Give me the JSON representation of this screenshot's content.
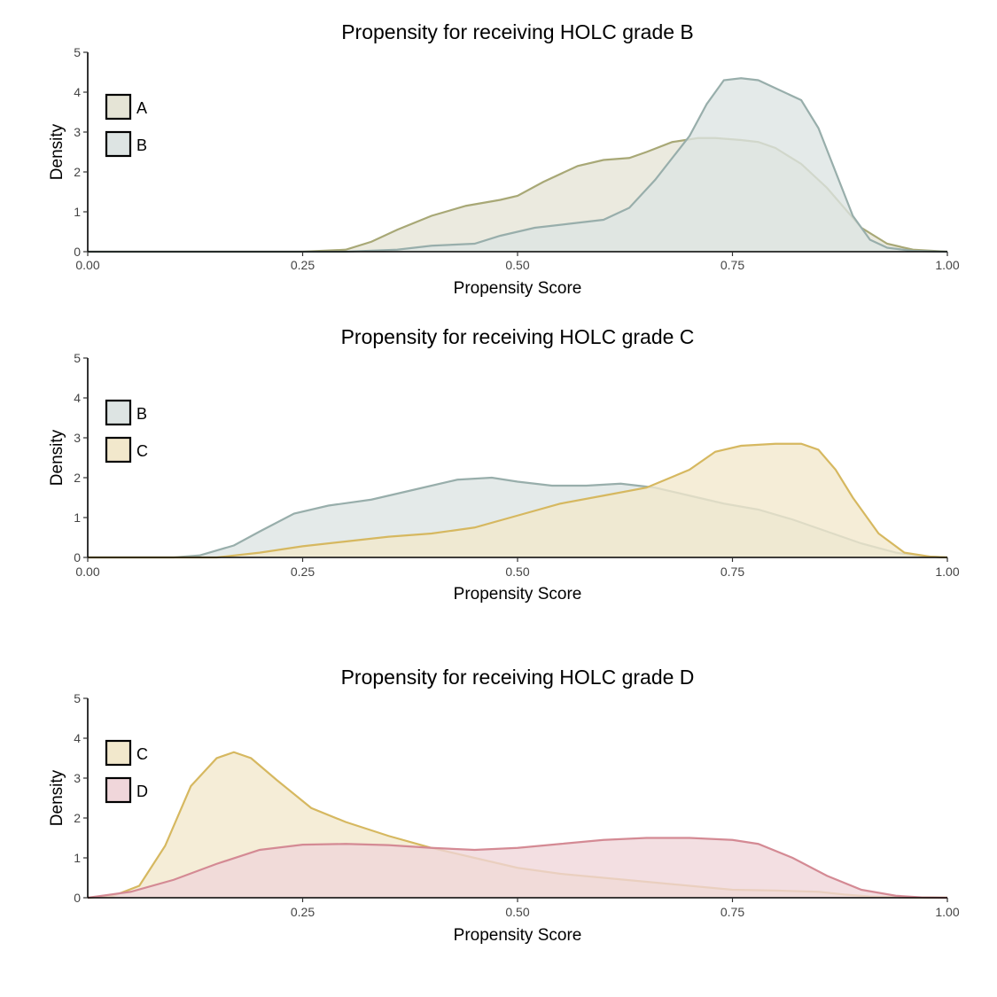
{
  "chart_data": [
    {
      "type": "area",
      "title": "Propensity for receiving HOLC grade B",
      "xlabel": "Propensity Score",
      "ylabel": "Density",
      "xlim": [
        0,
        1
      ],
      "ylim": [
        0,
        5
      ],
      "x_ticks": [
        0,
        0.25,
        0.5,
        0.75,
        1
      ],
      "x_tick_labels": [
        "0.00",
        "0.25",
        "0.50",
        "0.75",
        "1.00"
      ],
      "y_ticks": [
        0,
        1,
        2,
        3,
        4,
        5
      ],
      "y_tick_labels": [
        "0",
        "1",
        "2",
        "3",
        "4",
        "5"
      ],
      "legend_position": "top-left",
      "grid": false,
      "series": [
        {
          "name": "A",
          "fill": "#e5e4d6",
          "line": "#a8a876",
          "x": [
            0,
            0.25,
            0.3,
            0.33,
            0.36,
            0.4,
            0.44,
            0.48,
            0.5,
            0.53,
            0.57,
            0.6,
            0.63,
            0.65,
            0.68,
            0.71,
            0.73,
            0.76,
            0.78,
            0.8,
            0.83,
            0.86,
            0.88,
            0.9,
            0.93,
            0.96,
            1
          ],
          "y": [
            0,
            0,
            0.05,
            0.25,
            0.55,
            0.9,
            1.15,
            1.3,
            1.4,
            1.75,
            2.15,
            2.3,
            2.35,
            2.5,
            2.75,
            2.85,
            2.85,
            2.8,
            2.75,
            2.6,
            2.2,
            1.6,
            1.1,
            0.6,
            0.2,
            0.05,
            0
          ]
        },
        {
          "name": "B",
          "fill": "#dde4e3",
          "line": "#98aeab",
          "x": [
            0,
            0.3,
            0.36,
            0.4,
            0.45,
            0.48,
            0.52,
            0.56,
            0.6,
            0.63,
            0.66,
            0.7,
            0.72,
            0.74,
            0.76,
            0.78,
            0.8,
            0.83,
            0.85,
            0.87,
            0.89,
            0.91,
            0.93,
            0.96,
            1
          ],
          "y": [
            0,
            0,
            0.05,
            0.15,
            0.2,
            0.4,
            0.6,
            0.7,
            0.8,
            1.1,
            1.8,
            2.9,
            3.7,
            4.3,
            4.35,
            4.3,
            4.1,
            3.8,
            3.1,
            2.0,
            0.9,
            0.3,
            0.1,
            0.02,
            0
          ]
        }
      ]
    },
    {
      "type": "area",
      "title": "Propensity for receiving HOLC grade C",
      "xlabel": "Propensity Score",
      "ylabel": "Density",
      "xlim": [
        0,
        1
      ],
      "ylim": [
        0,
        5
      ],
      "x_ticks": [
        0,
        0.25,
        0.5,
        0.75,
        1
      ],
      "x_tick_labels": [
        "0.00",
        "0.25",
        "0.50",
        "0.75",
        "1.00"
      ],
      "y_ticks": [
        0,
        1,
        2,
        3,
        4,
        5
      ],
      "y_tick_labels": [
        "0",
        "1",
        "2",
        "3",
        "4",
        "5"
      ],
      "legend_position": "top-left",
      "grid": false,
      "series": [
        {
          "name": "B",
          "fill": "#dde4e3",
          "line": "#98aeab",
          "x": [
            0,
            0.1,
            0.13,
            0.17,
            0.2,
            0.24,
            0.28,
            0.33,
            0.38,
            0.43,
            0.47,
            0.5,
            0.54,
            0.58,
            0.62,
            0.66,
            0.7,
            0.74,
            0.78,
            0.82,
            0.86,
            0.9,
            0.94,
            0.97,
            1
          ],
          "y": [
            0,
            0,
            0.05,
            0.3,
            0.65,
            1.1,
            1.3,
            1.45,
            1.7,
            1.95,
            2.0,
            1.9,
            1.8,
            1.8,
            1.85,
            1.75,
            1.55,
            1.35,
            1.2,
            0.95,
            0.65,
            0.35,
            0.12,
            0.03,
            0
          ]
        },
        {
          "name": "C",
          "fill": "#f2e8cc",
          "line": "#d6b860",
          "x": [
            0,
            0.15,
            0.2,
            0.25,
            0.3,
            0.35,
            0.4,
            0.45,
            0.5,
            0.55,
            0.6,
            0.65,
            0.7,
            0.73,
            0.76,
            0.8,
            0.83,
            0.85,
            0.87,
            0.89,
            0.92,
            0.95,
            0.98,
            1
          ],
          "y": [
            0,
            0,
            0.12,
            0.28,
            0.4,
            0.52,
            0.6,
            0.75,
            1.05,
            1.35,
            1.55,
            1.75,
            2.2,
            2.65,
            2.8,
            2.85,
            2.85,
            2.7,
            2.2,
            1.5,
            0.6,
            0.12,
            0.02,
            0
          ]
        }
      ]
    },
    {
      "type": "area",
      "title": "Propensity for receiving HOLC grade D",
      "xlabel": "Propensity Score",
      "ylabel": "Density",
      "xlim": [
        0,
        1
      ],
      "ylim": [
        0,
        5
      ],
      "x_ticks": [
        0.25,
        0.5,
        0.75,
        1
      ],
      "x_tick_labels": [
        "0.25",
        "0.50",
        "0.75",
        "1.00"
      ],
      "y_ticks": [
        0,
        1,
        2,
        3,
        4,
        5
      ],
      "y_tick_labels": [
        "0",
        "1",
        "2",
        "3",
        "4",
        "5"
      ],
      "legend_position": "top-left",
      "grid": false,
      "series": [
        {
          "name": "C",
          "fill": "#f2e8cc",
          "line": "#d6b860",
          "x": [
            0,
            0.03,
            0.06,
            0.09,
            0.12,
            0.15,
            0.17,
            0.19,
            0.22,
            0.26,
            0.3,
            0.35,
            0.4,
            0.45,
            0.5,
            0.55,
            0.6,
            0.65,
            0.7,
            0.75,
            0.8,
            0.85,
            0.88,
            0.91,
            0.95,
            1
          ],
          "y": [
            0,
            0.05,
            0.3,
            1.3,
            2.8,
            3.5,
            3.65,
            3.5,
            2.95,
            2.25,
            1.9,
            1.55,
            1.25,
            1.0,
            0.75,
            0.6,
            0.5,
            0.4,
            0.3,
            0.2,
            0.18,
            0.15,
            0.08,
            0.03,
            0.01,
            0
          ]
        },
        {
          "name": "D",
          "fill": "#f0d6da",
          "line": "#d48a94",
          "x": [
            0,
            0.05,
            0.1,
            0.15,
            0.2,
            0.25,
            0.3,
            0.35,
            0.4,
            0.45,
            0.5,
            0.55,
            0.6,
            0.65,
            0.7,
            0.75,
            0.78,
            0.82,
            0.86,
            0.9,
            0.94,
            0.97,
            1
          ],
          "y": [
            0,
            0.15,
            0.45,
            0.85,
            1.2,
            1.33,
            1.35,
            1.32,
            1.25,
            1.2,
            1.25,
            1.35,
            1.45,
            1.5,
            1.5,
            1.45,
            1.35,
            1.0,
            0.55,
            0.2,
            0.05,
            0.01,
            0
          ]
        }
      ]
    }
  ]
}
